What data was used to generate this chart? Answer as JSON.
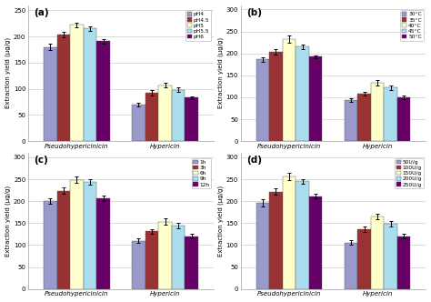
{
  "subplots": [
    {
      "label": "(a)",
      "legend_labels": [
        "pH4",
        "pH4.5",
        "pH5",
        "pH5.5",
        "pH6"
      ],
      "colors": [
        "#9999cc",
        "#993333",
        "#ffffcc",
        "#aaddee",
        "#660066"
      ],
      "pseudo_values": [
        180,
        203,
        222,
        215,
        191
      ],
      "pseudo_errors": [
        6,
        5,
        5,
        5,
        4
      ],
      "hypericin_values": [
        70,
        93,
        107,
        98,
        83
      ],
      "hypericin_errors": [
        4,
        5,
        4,
        4,
        3
      ],
      "ylabel": "Extraction yield (μg/g)",
      "ylim": [
        0,
        260
      ],
      "yticks": [
        0,
        50,
        100,
        150,
        200,
        250
      ]
    },
    {
      "label": "(b)",
      "legend_labels": [
        "30°C",
        "35°C",
        "40°C",
        "45°C",
        "50°C"
      ],
      "colors": [
        "#9999cc",
        "#993333",
        "#ffffcc",
        "#aaddee",
        "#660066"
      ],
      "pseudo_values": [
        186,
        203,
        233,
        215,
        192
      ],
      "pseudo_errors": [
        5,
        6,
        8,
        6,
        4
      ],
      "hypericin_values": [
        93,
        108,
        133,
        122,
        100
      ],
      "hypericin_errors": [
        4,
        5,
        6,
        5,
        4
      ],
      "ylabel": "Extraction yield (μg/g)",
      "ylim": [
        0,
        310
      ],
      "yticks": [
        0,
        50,
        100,
        150,
        200,
        250,
        300
      ]
    },
    {
      "label": "(c)",
      "legend_labels": [
        "1h",
        "3h",
        "6h",
        "9h",
        "12h"
      ],
      "colors": [
        "#9999cc",
        "#993333",
        "#ffffcc",
        "#aaddee",
        "#660066"
      ],
      "pseudo_values": [
        200,
        224,
        249,
        244,
        207
      ],
      "pseudo_errors": [
        6,
        8,
        8,
        7,
        6
      ],
      "hypericin_values": [
        110,
        131,
        153,
        145,
        120
      ],
      "hypericin_errors": [
        5,
        5,
        7,
        6,
        5
      ],
      "ylabel": "Extraction yield (μg/g)",
      "ylim": [
        0,
        310
      ],
      "yticks": [
        0,
        50,
        100,
        150,
        200,
        250,
        300
      ]
    },
    {
      "label": "(d)",
      "legend_labels": [
        "50U/g",
        "100U/g",
        "150U/g",
        "200U/g",
        "250U/g"
      ],
      "colors": [
        "#9999cc",
        "#993333",
        "#ffffcc",
        "#aaddee",
        "#660066"
      ],
      "pseudo_values": [
        196,
        222,
        257,
        245,
        211
      ],
      "pseudo_errors": [
        8,
        7,
        8,
        6,
        5
      ],
      "hypericin_values": [
        106,
        136,
        165,
        148,
        120
      ],
      "hypericin_errors": [
        5,
        6,
        7,
        6,
        5
      ],
      "ylabel": "Extraction yield (μg/g)",
      "ylim": [
        0,
        310
      ],
      "yticks": [
        0,
        50,
        100,
        150,
        200,
        250,
        300
      ]
    }
  ],
  "xtick_labels": [
    "Pseudohypericinicin",
    "Hypericin"
  ],
  "background_color": "#ffffff"
}
